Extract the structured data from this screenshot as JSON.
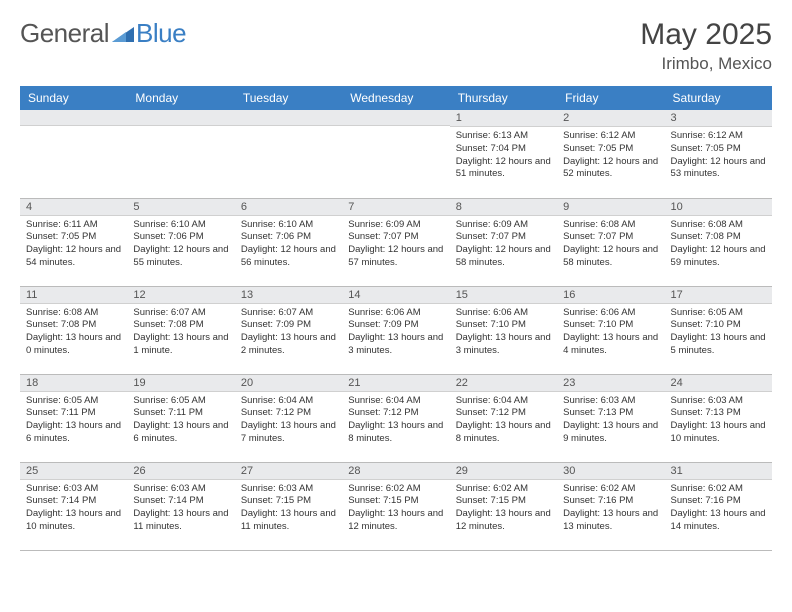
{
  "brand": {
    "part1": "General",
    "part2": "Blue"
  },
  "title": "May 2025",
  "location": "Irimbo, Mexico",
  "colors": {
    "header_bg": "#3a7fc4",
    "header_text": "#ffffff",
    "daynum_bg": "#e9eaec",
    "border": "#bbbbbb",
    "text": "#333333",
    "title_text": "#444444"
  },
  "weekdays": [
    "Sunday",
    "Monday",
    "Tuesday",
    "Wednesday",
    "Thursday",
    "Friday",
    "Saturday"
  ],
  "weeks": [
    [
      {
        "n": "",
        "sr": "",
        "ss": "",
        "dl": ""
      },
      {
        "n": "",
        "sr": "",
        "ss": "",
        "dl": ""
      },
      {
        "n": "",
        "sr": "",
        "ss": "",
        "dl": ""
      },
      {
        "n": "",
        "sr": "",
        "ss": "",
        "dl": ""
      },
      {
        "n": "1",
        "sr": "Sunrise: 6:13 AM",
        "ss": "Sunset: 7:04 PM",
        "dl": "Daylight: 12 hours and 51 minutes."
      },
      {
        "n": "2",
        "sr": "Sunrise: 6:12 AM",
        "ss": "Sunset: 7:05 PM",
        "dl": "Daylight: 12 hours and 52 minutes."
      },
      {
        "n": "3",
        "sr": "Sunrise: 6:12 AM",
        "ss": "Sunset: 7:05 PM",
        "dl": "Daylight: 12 hours and 53 minutes."
      }
    ],
    [
      {
        "n": "4",
        "sr": "Sunrise: 6:11 AM",
        "ss": "Sunset: 7:05 PM",
        "dl": "Daylight: 12 hours and 54 minutes."
      },
      {
        "n": "5",
        "sr": "Sunrise: 6:10 AM",
        "ss": "Sunset: 7:06 PM",
        "dl": "Daylight: 12 hours and 55 minutes."
      },
      {
        "n": "6",
        "sr": "Sunrise: 6:10 AM",
        "ss": "Sunset: 7:06 PM",
        "dl": "Daylight: 12 hours and 56 minutes."
      },
      {
        "n": "7",
        "sr": "Sunrise: 6:09 AM",
        "ss": "Sunset: 7:07 PM",
        "dl": "Daylight: 12 hours and 57 minutes."
      },
      {
        "n": "8",
        "sr": "Sunrise: 6:09 AM",
        "ss": "Sunset: 7:07 PM",
        "dl": "Daylight: 12 hours and 58 minutes."
      },
      {
        "n": "9",
        "sr": "Sunrise: 6:08 AM",
        "ss": "Sunset: 7:07 PM",
        "dl": "Daylight: 12 hours and 58 minutes."
      },
      {
        "n": "10",
        "sr": "Sunrise: 6:08 AM",
        "ss": "Sunset: 7:08 PM",
        "dl": "Daylight: 12 hours and 59 minutes."
      }
    ],
    [
      {
        "n": "11",
        "sr": "Sunrise: 6:08 AM",
        "ss": "Sunset: 7:08 PM",
        "dl": "Daylight: 13 hours and 0 minutes."
      },
      {
        "n": "12",
        "sr": "Sunrise: 6:07 AM",
        "ss": "Sunset: 7:08 PM",
        "dl": "Daylight: 13 hours and 1 minute."
      },
      {
        "n": "13",
        "sr": "Sunrise: 6:07 AM",
        "ss": "Sunset: 7:09 PM",
        "dl": "Daylight: 13 hours and 2 minutes."
      },
      {
        "n": "14",
        "sr": "Sunrise: 6:06 AM",
        "ss": "Sunset: 7:09 PM",
        "dl": "Daylight: 13 hours and 3 minutes."
      },
      {
        "n": "15",
        "sr": "Sunrise: 6:06 AM",
        "ss": "Sunset: 7:10 PM",
        "dl": "Daylight: 13 hours and 3 minutes."
      },
      {
        "n": "16",
        "sr": "Sunrise: 6:06 AM",
        "ss": "Sunset: 7:10 PM",
        "dl": "Daylight: 13 hours and 4 minutes."
      },
      {
        "n": "17",
        "sr": "Sunrise: 6:05 AM",
        "ss": "Sunset: 7:10 PM",
        "dl": "Daylight: 13 hours and 5 minutes."
      }
    ],
    [
      {
        "n": "18",
        "sr": "Sunrise: 6:05 AM",
        "ss": "Sunset: 7:11 PM",
        "dl": "Daylight: 13 hours and 6 minutes."
      },
      {
        "n": "19",
        "sr": "Sunrise: 6:05 AM",
        "ss": "Sunset: 7:11 PM",
        "dl": "Daylight: 13 hours and 6 minutes."
      },
      {
        "n": "20",
        "sr": "Sunrise: 6:04 AM",
        "ss": "Sunset: 7:12 PM",
        "dl": "Daylight: 13 hours and 7 minutes."
      },
      {
        "n": "21",
        "sr": "Sunrise: 6:04 AM",
        "ss": "Sunset: 7:12 PM",
        "dl": "Daylight: 13 hours and 8 minutes."
      },
      {
        "n": "22",
        "sr": "Sunrise: 6:04 AM",
        "ss": "Sunset: 7:12 PM",
        "dl": "Daylight: 13 hours and 8 minutes."
      },
      {
        "n": "23",
        "sr": "Sunrise: 6:03 AM",
        "ss": "Sunset: 7:13 PM",
        "dl": "Daylight: 13 hours and 9 minutes."
      },
      {
        "n": "24",
        "sr": "Sunrise: 6:03 AM",
        "ss": "Sunset: 7:13 PM",
        "dl": "Daylight: 13 hours and 10 minutes."
      }
    ],
    [
      {
        "n": "25",
        "sr": "Sunrise: 6:03 AM",
        "ss": "Sunset: 7:14 PM",
        "dl": "Daylight: 13 hours and 10 minutes."
      },
      {
        "n": "26",
        "sr": "Sunrise: 6:03 AM",
        "ss": "Sunset: 7:14 PM",
        "dl": "Daylight: 13 hours and 11 minutes."
      },
      {
        "n": "27",
        "sr": "Sunrise: 6:03 AM",
        "ss": "Sunset: 7:15 PM",
        "dl": "Daylight: 13 hours and 11 minutes."
      },
      {
        "n": "28",
        "sr": "Sunrise: 6:02 AM",
        "ss": "Sunset: 7:15 PM",
        "dl": "Daylight: 13 hours and 12 minutes."
      },
      {
        "n": "29",
        "sr": "Sunrise: 6:02 AM",
        "ss": "Sunset: 7:15 PM",
        "dl": "Daylight: 13 hours and 12 minutes."
      },
      {
        "n": "30",
        "sr": "Sunrise: 6:02 AM",
        "ss": "Sunset: 7:16 PM",
        "dl": "Daylight: 13 hours and 13 minutes."
      },
      {
        "n": "31",
        "sr": "Sunrise: 6:02 AM",
        "ss": "Sunset: 7:16 PM",
        "dl": "Daylight: 13 hours and 14 minutes."
      }
    ]
  ]
}
